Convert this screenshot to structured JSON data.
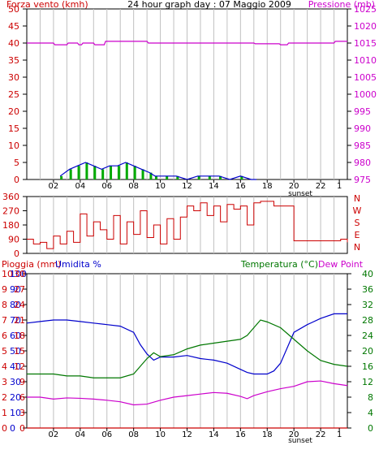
{
  "title": "24 hour graph day : 07 Maggio 2009",
  "colors": {
    "wind": "#cc0000",
    "gust": "#ff0000",
    "pressure": "#cc00cc",
    "humidity": "#0000cc",
    "temperature": "#007700",
    "dew": "#cc00cc",
    "rain": "#cc0000",
    "direction": "#cc0000",
    "grid": "#c0c0c0",
    "windbar": "#00aa00"
  },
  "x_ticks": [
    "02",
    "04",
    "06",
    "08",
    "10",
    "12",
    "14",
    "16",
    "18",
    "20",
    "22",
    "1"
  ],
  "sunset_label": "sunset",
  "chart_data": [
    {
      "type": "line",
      "title": "24 hour graph day : 07 Maggio 2009",
      "ylabel_left": "Forza vento (kmh)",
      "ylabel_right": "Pressione (mb)",
      "y_left_ticks": [
        "0",
        "5",
        "10",
        "15",
        "20",
        "25",
        "30",
        "35",
        "40",
        "45",
        "50"
      ],
      "y_right_ticks": [
        "975",
        "980",
        "985",
        "990",
        "995",
        "1000",
        "1005",
        "1010",
        "1015",
        "1020",
        "1025"
      ],
      "ylim_left": [
        0,
        50
      ],
      "ylim_right": [
        975,
        1025
      ],
      "series": [
        {
          "name": "Pressione (mb)",
          "axis": "right",
          "x": [
            0,
            2,
            2.1,
            3.0,
            3.1,
            3.8,
            3.9,
            4.1,
            4.2,
            5.0,
            5.1,
            5.8,
            5.9,
            9.0,
            9.1,
            17.0,
            17.1,
            18.9,
            19.0,
            19.5,
            19.6,
            23.0,
            23.1,
            24
          ],
          "y": [
            1015,
            1015,
            1014.5,
            1014.5,
            1015,
            1015,
            1014.5,
            1014.5,
            1015,
            1015,
            1014.5,
            1014.5,
            1015.5,
            1015.5,
            1015,
            1015,
            1014.8,
            1014.8,
            1014.5,
            1014.5,
            1015,
            1015,
            1015.5,
            1015.5
          ]
        },
        {
          "name": "Forza vento (kmh)",
          "axis": "left",
          "x": [
            2.5,
            3.2,
            3.8,
            4.4,
            5.0,
            5.6,
            6.2,
            6.8,
            7.4,
            8.0,
            8.6,
            9.2,
            9.6,
            10.4,
            11.2,
            12.0,
            12.8,
            13.6,
            14.4,
            15.2,
            16.0,
            16.8,
            17.2
          ],
          "y": [
            1,
            3,
            4,
            5,
            4,
            3,
            4,
            4,
            5,
            4,
            3,
            2,
            1,
            1,
            1,
            0,
            1,
            1,
            1,
            0,
            1,
            0,
            0
          ]
        }
      ]
    },
    {
      "type": "line",
      "ylabel_right": "N W S E N",
      "y_ticks": [
        "0",
        "90",
        "180",
        "270",
        "360"
      ],
      "ylim": [
        0,
        360
      ],
      "series": [
        {
          "name": "direction",
          "x": [
            0.0,
            0.5,
            1.0,
            1.5,
            2.0,
            2.5,
            3.0,
            3.5,
            4.0,
            4.5,
            5.0,
            5.5,
            6.0,
            6.5,
            7.0,
            7.5,
            8.0,
            8.5,
            9.0,
            9.5,
            10.0,
            10.5,
            11.0,
            11.5,
            12.0,
            12.5,
            13.0,
            13.5,
            14.0,
            14.5,
            15.0,
            15.5,
            16.0,
            16.5,
            17.0,
            17.5,
            18.0,
            18.5,
            19.0,
            19.5,
            20.0,
            20.5,
            21.0,
            21.5,
            22.0,
            22.5,
            23.0,
            23.5,
            24.0
          ],
          "y": [
            90,
            60,
            70,
            30,
            110,
            60,
            140,
            70,
            250,
            110,
            200,
            150,
            90,
            240,
            60,
            200,
            120,
            270,
            100,
            180,
            60,
            220,
            90,
            230,
            300,
            270,
            320,
            240,
            300,
            200,
            310,
            280,
            300,
            180,
            320,
            330,
            330,
            300,
            300,
            300,
            80,
            80,
            80,
            80,
            80,
            80,
            80,
            90,
            70
          ]
        }
      ]
    },
    {
      "type": "line",
      "ylabel_left_rain": "Pioggia (mm)",
      "ylabel_left_hum": "Umidita %",
      "ylabel_right_temp": "Temperatura (°C)",
      "ylabel_right_dew": "Dew Point",
      "rain_ticks": [
        "0",
        "1",
        "2",
        "3",
        "4",
        "5",
        "6",
        "7",
        "8",
        "9",
        "10"
      ],
      "humidity_ticks": [
        "0",
        "10",
        "20",
        "30",
        "40",
        "50",
        "60",
        "70",
        "80",
        "90",
        "100"
      ],
      "left_inner_ticks": [
        "0",
        "3",
        "6",
        "9",
        "12",
        "15",
        "18",
        "21",
        "24",
        "27",
        "30"
      ],
      "right_ticks": [
        "0",
        "4",
        "8",
        "12",
        "16",
        "20",
        "24",
        "28",
        "32",
        "36",
        "40"
      ],
      "ylim_temp": [
        0,
        40
      ],
      "series": [
        {
          "name": "Umidita %",
          "axis": "humidity",
          "x": [
            0,
            1,
            2,
            3,
            4,
            5,
            6,
            7,
            8,
            8.5,
            9,
            9.5,
            10,
            11,
            12,
            13,
            14,
            15,
            16,
            16.5,
            17,
            17.5,
            18,
            18.5,
            19,
            20,
            21,
            22,
            23,
            24
          ],
          "y": [
            68,
            69,
            70,
            70,
            69,
            68,
            67,
            66,
            62,
            54,
            48,
            44,
            46,
            46,
            47,
            45,
            44,
            42,
            38,
            36,
            35,
            35,
            35,
            37,
            42,
            62,
            67,
            71,
            74,
            74
          ]
        },
        {
          "name": "Temperatura (°C)",
          "axis": "temp",
          "x": [
            0,
            1,
            2,
            3,
            4,
            5,
            6,
            7,
            8,
            8.5,
            9,
            9.5,
            10,
            11,
            12,
            13,
            14,
            15,
            16,
            16.5,
            17,
            17.5,
            18,
            19,
            20,
            21,
            22,
            23,
            24
          ],
          "y": [
            14,
            14,
            14,
            13.5,
            13.5,
            13,
            13,
            13,
            14,
            16,
            18,
            19.5,
            18.5,
            19,
            20.5,
            21.5,
            22,
            22.5,
            23,
            24,
            26,
            28,
            27.5,
            26,
            23,
            20,
            17.5,
            16.5,
            16
          ]
        },
        {
          "name": "Dew Point",
          "axis": "temp",
          "x": [
            0,
            1,
            2,
            3,
            4,
            5,
            6,
            7,
            8,
            9,
            10,
            11,
            12,
            13,
            14,
            15,
            16,
            16.5,
            17,
            18,
            19,
            20,
            21,
            22,
            23,
            24
          ],
          "y": [
            8,
            8,
            7.5,
            7.8,
            7.7,
            7.5,
            7.2,
            6.8,
            6,
            6.2,
            7.2,
            8,
            8.4,
            8.8,
            9.2,
            9,
            8.2,
            7.6,
            8.4,
            9.4,
            10.2,
            10.8,
            12,
            12.2,
            11.5,
            11
          ]
        },
        {
          "name": "Pioggia (mm)",
          "axis": "rain",
          "x": [
            0,
            24
          ],
          "y": [
            0,
            0
          ]
        }
      ]
    }
  ]
}
